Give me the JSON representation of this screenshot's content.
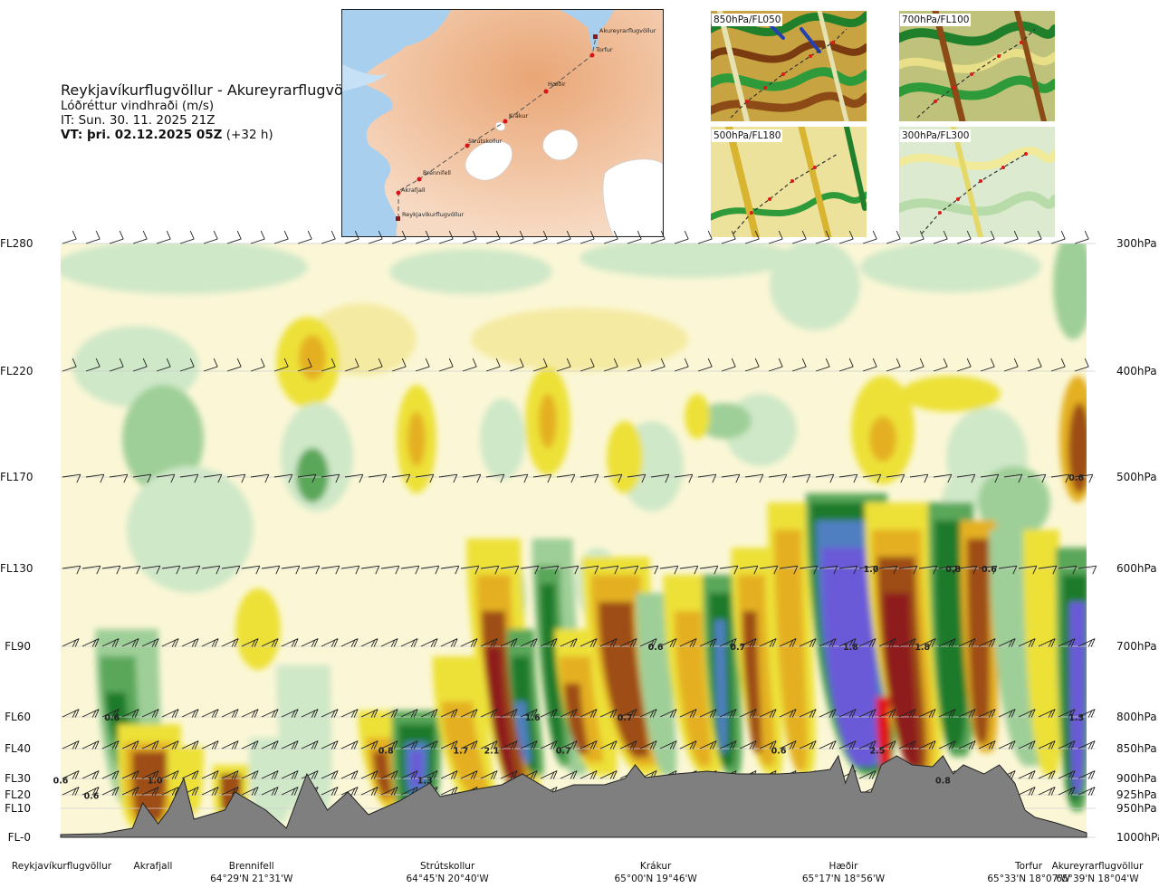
{
  "header": {
    "route": "Reykjavíkurflugvöllur - Akureyrarflugvöllur",
    "parameter": "Lóðréttur vindhraði (m/s)",
    "issue_time": "IT: Sun. 30. 11. 2025 21Z",
    "valid_time": "VT: þri. 02.12.2025 05Z",
    "lead_time": "(+32 h)"
  },
  "map": {
    "points": [
      {
        "name": "Akureyrarflugvöllur",
        "marker": "square"
      },
      {
        "name": "Torfur",
        "marker": "dot"
      },
      {
        "name": "Hæðir",
        "marker": "dot"
      },
      {
        "name": "Krákur",
        "marker": "dot"
      },
      {
        "name": "Strútskollur",
        "marker": "dot"
      },
      {
        "name": "Brennifell",
        "marker": "dot"
      },
      {
        "name": "Akrafjall",
        "marker": "dot"
      },
      {
        "name": "Reykjavíkurflugvöllur",
        "marker": "square"
      }
    ]
  },
  "thumbnails": [
    {
      "label": "850hPa/FL050"
    },
    {
      "label": "700hPa/FL100"
    },
    {
      "label": "500hPa/FL180"
    },
    {
      "label": "300hPa/FL300"
    }
  ],
  "chart_data": {
    "type": "heatmap",
    "title": "Reykjavíkurflugvöllur - Akureyrarflugvöllur",
    "subtitle": "Lóðréttur vindhraði (m/s)",
    "left_axis_flight_levels": [
      "FL280",
      "FL220",
      "FL170",
      "FL130",
      "FL90",
      "FL60",
      "FL40",
      "FL30",
      "FL20",
      "FL10",
      "FL-0"
    ],
    "right_axis_pressure_levels": [
      "300hPa",
      "400hPa",
      "500hPa",
      "600hPa",
      "700hPa",
      "800hPa",
      "850hPa",
      "900hPa",
      "925hPa",
      "950hPa",
      "1000hPa"
    ],
    "pressure_values_hpa": [
      300,
      400,
      500,
      600,
      700,
      800,
      850,
      900,
      925,
      950,
      1000
    ],
    "route_points": [
      {
        "name": "Reykjavíkurflugvöllur",
        "coord": "",
        "pos": 0.0
      },
      {
        "name": "Akrafjall",
        "coord": "",
        "pos": 0.09
      },
      {
        "name": "Brennifell",
        "coord": "64°29'N 21°31'W",
        "pos": 0.186
      },
      {
        "name": "Strútskollur",
        "coord": "64°45'N 20°40'W",
        "pos": 0.377
      },
      {
        "name": "Krákur",
        "coord": "65°00'N 19°46'W",
        "pos": 0.58
      },
      {
        "name": "Hæðir",
        "coord": "65°17'N 18°56'W",
        "pos": 0.763
      },
      {
        "name": "Torfur",
        "coord": "65°33'N 18°07'W",
        "pos": 0.97
      },
      {
        "name": "Akureyrarflugvöllur",
        "coord": "65°39'N 18°04'W",
        "pos": 1.0
      }
    ],
    "contour_labels": [
      {
        "text": "0.6",
        "pos": 0.0,
        "p": 902
      },
      {
        "text": "0.6",
        "pos": 0.03,
        "p": 926
      },
      {
        "text": "0.6",
        "pos": 0.05,
        "p": 800
      },
      {
        "text": "1.0",
        "pos": 0.092,
        "p": 902
      },
      {
        "text": "0.8",
        "pos": 0.317,
        "p": 852
      },
      {
        "text": "1.3",
        "pos": 0.355,
        "p": 902
      },
      {
        "text": "1.7",
        "pos": 0.39,
        "p": 852
      },
      {
        "text": "2.1",
        "pos": 0.42,
        "p": 852
      },
      {
        "text": "1.6",
        "pos": 0.46,
        "p": 800
      },
      {
        "text": "0.7",
        "pos": 0.49,
        "p": 852
      },
      {
        "text": "0.7",
        "pos": 0.55,
        "p": 800
      },
      {
        "text": "0.6",
        "pos": 0.58,
        "p": 700
      },
      {
        "text": "0.6",
        "pos": 0.7,
        "p": 852
      },
      {
        "text": "0.7",
        "pos": 0.66,
        "p": 700
      },
      {
        "text": "1.8",
        "pos": 0.77,
        "p": 700
      },
      {
        "text": "1.0",
        "pos": 0.79,
        "p": 600
      },
      {
        "text": "2.5",
        "pos": 0.796,
        "p": 852
      },
      {
        "text": "1.8",
        "pos": 0.84,
        "p": 700
      },
      {
        "text": "0.8",
        "pos": 0.87,
        "p": 600
      },
      {
        "text": "0.6",
        "pos": 0.905,
        "p": 600
      },
      {
        "text": "0.8",
        "pos": 0.86,
        "p": 902
      },
      {
        "text": "1.3",
        "pos": 0.99,
        "p": 800
      },
      {
        "text": "0.6",
        "pos": 0.99,
        "p": 500
      }
    ],
    "colors": {
      "strong_up": "#6a5ad8",
      "up_blue": "#4f7fc0",
      "up_green_dark": "#1a7a2a",
      "up_green": "#5aa75a",
      "up_green_mid": "#9fcf98",
      "up_green_light": "#cfe8c8",
      "neutral": "#fbf7d6",
      "down_light": "#f5eaa2",
      "down_yellow": "#ede139",
      "down_orange": "#e4b021",
      "down_brown": "#9e4e18",
      "down_darkred": "#8f1a1a",
      "down_red": "#e01818",
      "terrain": "#7f7f7f"
    }
  }
}
